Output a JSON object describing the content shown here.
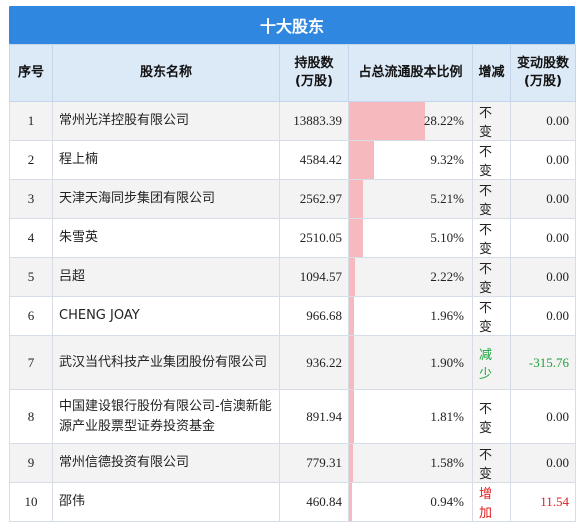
{
  "title": "十大股东",
  "headers": {
    "idx": "序号",
    "name": "股东名称",
    "shares": "持股数\n(万股)",
    "ratio": "占总流通股本比例",
    "change_dir": "增减",
    "change_amt": "变动股数\n(万股)"
  },
  "rows": [
    {
      "idx": "1",
      "name": "常州光洋控股有限公司",
      "shares": "13883.39",
      "ratio": "28.22%",
      "ratio_value": 28.22,
      "dir": "不变",
      "amt": "0.00"
    },
    {
      "idx": "2",
      "name": "程上楠",
      "shares": "4584.42",
      "ratio": "9.32%",
      "ratio_value": 9.32,
      "dir": "不变",
      "amt": "0.00"
    },
    {
      "idx": "3",
      "name": "天津天海同步集团有限公司",
      "shares": "2562.97",
      "ratio": "5.21%",
      "ratio_value": 5.21,
      "dir": "不变",
      "amt": "0.00"
    },
    {
      "idx": "4",
      "name": "朱雪英",
      "shares": "2510.05",
      "ratio": "5.10%",
      "ratio_value": 5.1,
      "dir": "不变",
      "amt": "0.00"
    },
    {
      "idx": "5",
      "name": "吕超",
      "shares": "1094.57",
      "ratio": "2.22%",
      "ratio_value": 2.22,
      "dir": "不变",
      "amt": "0.00"
    },
    {
      "idx": "6",
      "name": "CHENG JOAY",
      "shares": "966.68",
      "ratio": "1.96%",
      "ratio_value": 1.96,
      "dir": "不变",
      "amt": "0.00"
    },
    {
      "idx": "7",
      "name": "武汉当代科技产业集团股份有限公司",
      "shares": "936.22",
      "ratio": "1.90%",
      "ratio_value": 1.9,
      "dir": "减少",
      "amt": "-315.76"
    },
    {
      "idx": "8",
      "name": "中国建设银行股份有限公司-信澳新能源产业股票型证券投资基金",
      "shares": "891.94",
      "ratio": "1.81%",
      "ratio_value": 1.81,
      "dir": "不变",
      "amt": "0.00"
    },
    {
      "idx": "9",
      "name": "常州信德投资有限公司",
      "shares": "779.31",
      "ratio": "1.58%",
      "ratio_value": 1.58,
      "dir": "不变",
      "amt": "0.00"
    },
    {
      "idx": "10",
      "name": "邵伟",
      "shares": "460.84",
      "ratio": "0.94%",
      "ratio_value": 0.94,
      "dir": "增加",
      "amt": "11.54"
    }
  ],
  "colors": {
    "header_bar": "#2f87e0",
    "header_row": "#dce9f7",
    "ratio_bar": "#f6b9bd",
    "decrease": "#1aa33b",
    "increase": "#e02020"
  }
}
